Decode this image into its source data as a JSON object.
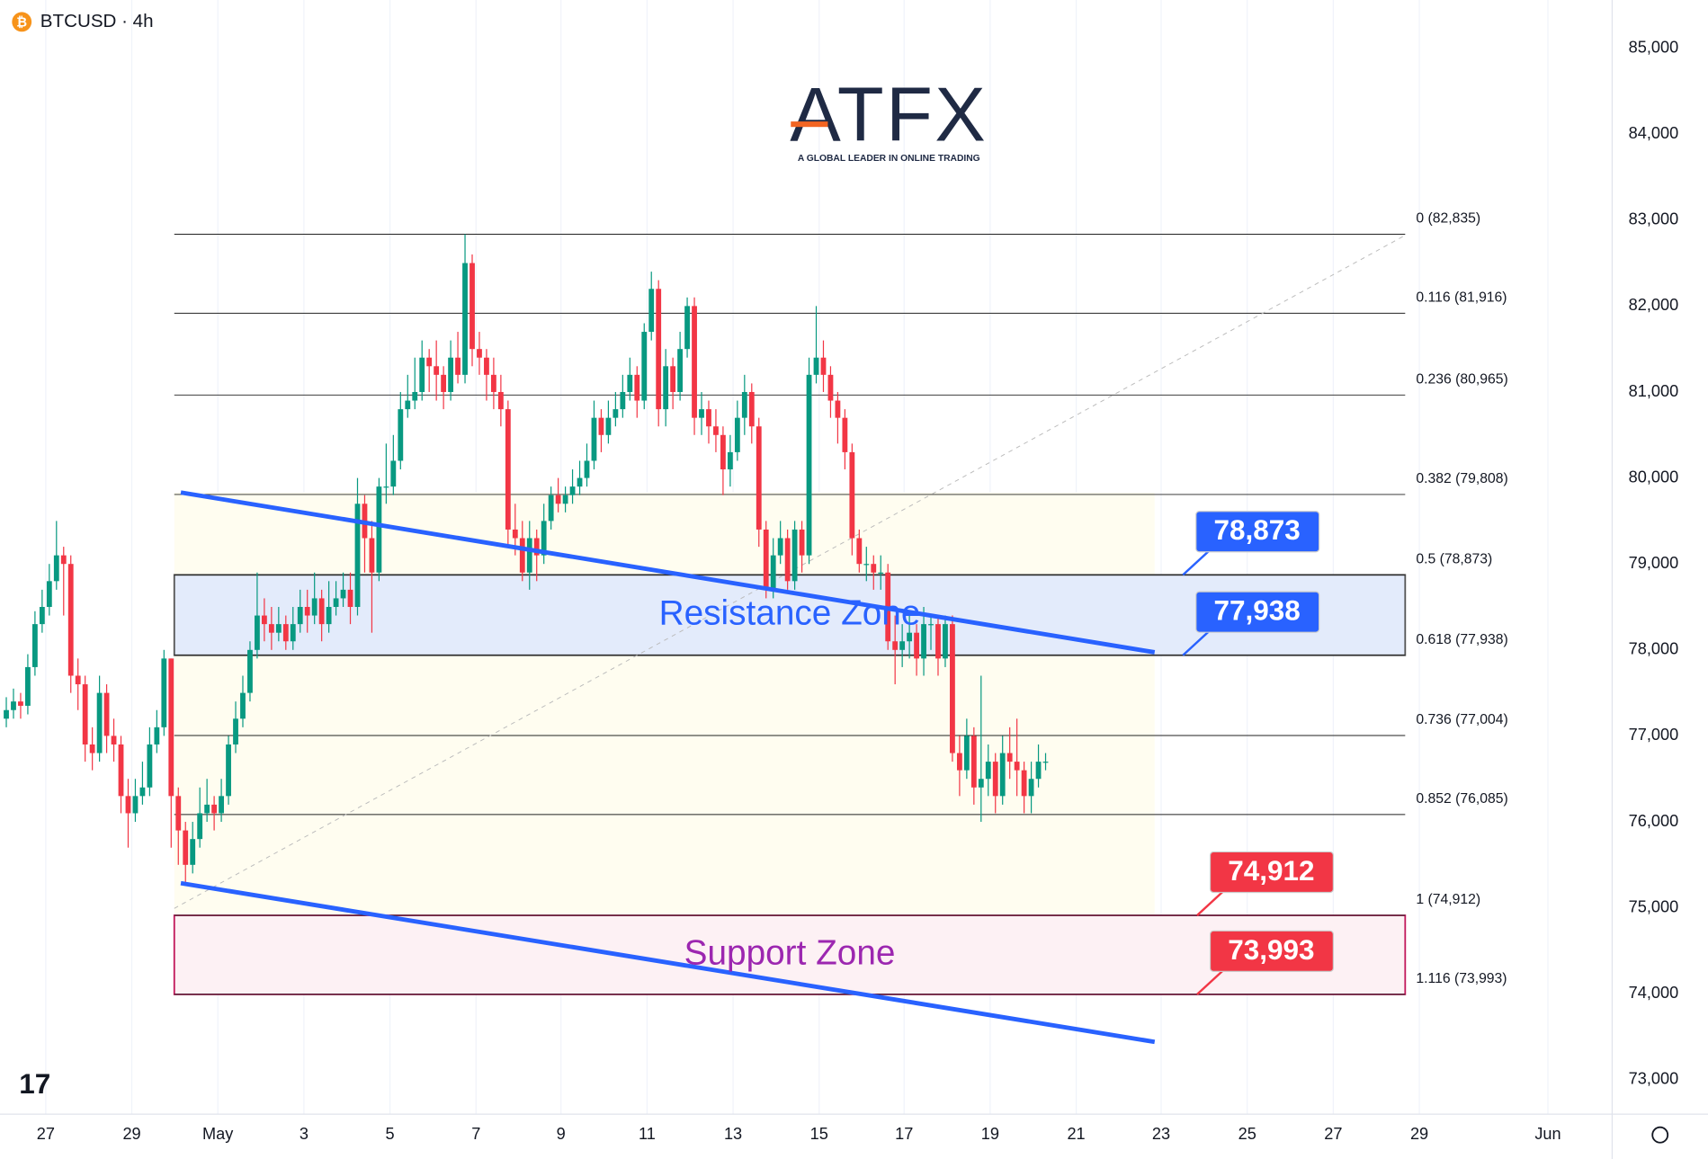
{
  "header": {
    "symbol": "BTCUSD · 4h"
  },
  "logo": {
    "brand": "ATFX",
    "tagline": "A GLOBAL LEADER IN ONLINE TRADING"
  },
  "chart_data": {
    "type": "candlestick",
    "up_color": "#089981",
    "down_color": "#f23645",
    "ylim": [
      72600,
      85560
    ],
    "yticks": [
      {
        "value": 73000,
        "label": "73,000"
      },
      {
        "value": 74000,
        "label": "74,000"
      },
      {
        "value": 75000,
        "label": "75,000"
      },
      {
        "value": 76000,
        "label": "76,000"
      },
      {
        "value": 77000,
        "label": "77,000"
      },
      {
        "value": 78000,
        "label": "78,000"
      },
      {
        "value": 79000,
        "label": "79,000"
      },
      {
        "value": 80000,
        "label": "80,000"
      },
      {
        "value": 81000,
        "label": "81,000"
      },
      {
        "value": 82000,
        "label": "82,000"
      },
      {
        "value": 83000,
        "label": "83,000"
      },
      {
        "value": 84000,
        "label": "84,000"
      },
      {
        "value": 85000,
        "label": "85,000"
      }
    ],
    "xticks": [
      "27",
      "29",
      "May",
      "3",
      "5",
      "7",
      "9",
      "11",
      "13",
      "15",
      "17",
      "19",
      "21",
      "23",
      "25",
      "27",
      "29",
      "Jun"
    ],
    "grid": true,
    "candles": [
      [
        77200,
        77450,
        77100,
        77300
      ],
      [
        77300,
        77550,
        77200,
        77400
      ],
      [
        77400,
        77500,
        77200,
        77350
      ],
      [
        77350,
        77950,
        77250,
        77800
      ],
      [
        77800,
        78450,
        77700,
        78300
      ],
      [
        78300,
        78700,
        78200,
        78500
      ],
      [
        78500,
        79000,
        78400,
        78800
      ],
      [
        78800,
        79500,
        78700,
        79100
      ],
      [
        79100,
        79200,
        78400,
        79000
      ],
      [
        79000,
        79100,
        77500,
        77700
      ],
      [
        77700,
        77900,
        77300,
        77600
      ],
      [
        77600,
        77700,
        76700,
        76900
      ],
      [
        76900,
        77100,
        76600,
        76800
      ],
      [
        76800,
        77700,
        76700,
        77500
      ],
      [
        77500,
        77600,
        76800,
        77000
      ],
      [
        77000,
        77200,
        76700,
        76900
      ],
      [
        76900,
        77000,
        76100,
        76300
      ],
      [
        76300,
        76500,
        75700,
        76100
      ],
      [
        76100,
        76500,
        76000,
        76300
      ],
      [
        76300,
        76700,
        76200,
        76400
      ],
      [
        76400,
        77100,
        76300,
        76900
      ],
      [
        76900,
        77300,
        76800,
        77100
      ],
      [
        77100,
        78000,
        77000,
        77900
      ],
      [
        77900,
        77900,
        75700,
        76300
      ],
      [
        76300,
        76400,
        75500,
        75900
      ],
      [
        75900,
        76000,
        75300,
        75500
      ],
      [
        75500,
        76000,
        75400,
        75800
      ],
      [
        75800,
        76400,
        75700,
        76100
      ],
      [
        76100,
        76500,
        76000,
        76200
      ],
      [
        76200,
        76300,
        75900,
        76100
      ],
      [
        76100,
        76500,
        76000,
        76300
      ],
      [
        76300,
        77000,
        76200,
        76900
      ],
      [
        76900,
        77400,
        76800,
        77200
      ],
      [
        77200,
        77700,
        77100,
        77500
      ],
      [
        77500,
        78100,
        77400,
        78000
      ],
      [
        78000,
        78900,
        77900,
        78400
      ],
      [
        78400,
        78600,
        78100,
        78300
      ],
      [
        78300,
        78500,
        78000,
        78200
      ],
      [
        78200,
        78500,
        78100,
        78300
      ],
      [
        78300,
        78400,
        78000,
        78100
      ],
      [
        78100,
        78500,
        78000,
        78300
      ],
      [
        78300,
        78700,
        78200,
        78500
      ],
      [
        78500,
        78700,
        78200,
        78400
      ],
      [
        78400,
        78900,
        78300,
        78600
      ],
      [
        78600,
        78700,
        78100,
        78300
      ],
      [
        78300,
        78800,
        78200,
        78500
      ],
      [
        78500,
        78800,
        78400,
        78600
      ],
      [
        78600,
        78900,
        78500,
        78700
      ],
      [
        78700,
        78900,
        78300,
        78500
      ],
      [
        78500,
        80000,
        78400,
        79700
      ],
      [
        79700,
        79800,
        78900,
        79300
      ],
      [
        79300,
        79500,
        78200,
        78900
      ],
      [
        78900,
        80000,
        78800,
        79900
      ],
      [
        79900,
        80400,
        79700,
        79900
      ],
      [
        79900,
        80500,
        79800,
        80200
      ],
      [
        80200,
        81000,
        80100,
        80800
      ],
      [
        80800,
        81200,
        80700,
        80900
      ],
      [
        80900,
        81400,
        80800,
        81000
      ],
      [
        81000,
        81600,
        80900,
        81400
      ],
      [
        81400,
        81500,
        81000,
        81300
      ],
      [
        81300,
        81600,
        80900,
        81200
      ],
      [
        81200,
        81300,
        80800,
        81000
      ],
      [
        81000,
        81600,
        80900,
        81400
      ],
      [
        81400,
        81700,
        81100,
        81200
      ],
      [
        81200,
        82835,
        81100,
        82500
      ],
      [
        82500,
        82600,
        81300,
        81500
      ],
      [
        81500,
        81700,
        81200,
        81400
      ],
      [
        81400,
        81500,
        80900,
        81200
      ],
      [
        81200,
        81400,
        80800,
        81000
      ],
      [
        81000,
        81200,
        80600,
        80800
      ],
      [
        80800,
        80900,
        79200,
        79400
      ],
      [
        79400,
        79700,
        79100,
        79300
      ],
      [
        79300,
        79500,
        78800,
        78900
      ],
      [
        78900,
        79500,
        78700,
        79300
      ],
      [
        79300,
        79400,
        78800,
        79100
      ],
      [
        79100,
        79700,
        79000,
        79500
      ],
      [
        79500,
        79900,
        79400,
        79800
      ],
      [
        79800,
        80000,
        79600,
        79700
      ],
      [
        79700,
        79900,
        79600,
        79800
      ],
      [
        79800,
        80100,
        79700,
        79900
      ],
      [
        79900,
        80200,
        79800,
        80000
      ],
      [
        80000,
        80400,
        79900,
        80200
      ],
      [
        80200,
        80900,
        80100,
        80700
      ],
      [
        80700,
        80800,
        80300,
        80500
      ],
      [
        80500,
        80900,
        80400,
        80700
      ],
      [
        80700,
        81000,
        80600,
        80800
      ],
      [
        80800,
        81200,
        80700,
        81000
      ],
      [
        81000,
        81400,
        80900,
        81200
      ],
      [
        81200,
        81300,
        80700,
        80900
      ],
      [
        80900,
        81800,
        80800,
        81700
      ],
      [
        81700,
        82400,
        81600,
        82200
      ],
      [
        82200,
        82300,
        80600,
        80800
      ],
      [
        80800,
        81500,
        80600,
        81300
      ],
      [
        81300,
        81400,
        80800,
        81000
      ],
      [
        81000,
        81700,
        80900,
        81500
      ],
      [
        81500,
        82100,
        81400,
        82000
      ],
      [
        82000,
        82100,
        80500,
        80700
      ],
      [
        80700,
        81000,
        80500,
        80800
      ],
      [
        80800,
        80900,
        80400,
        80600
      ],
      [
        80600,
        80800,
        80300,
        80500
      ],
      [
        80500,
        80600,
        79800,
        80100
      ],
      [
        80100,
        80500,
        79900,
        80300
      ],
      [
        80300,
        80900,
        80200,
        80700
      ],
      [
        80700,
        81200,
        80500,
        81000
      ],
      [
        81000,
        81100,
        80400,
        80600
      ],
      [
        80600,
        80700,
        79200,
        79400
      ],
      [
        79400,
        79500,
        78600,
        78700
      ],
      [
        78700,
        79300,
        78600,
        79100
      ],
      [
        79100,
        79500,
        79000,
        79300
      ],
      [
        79300,
        79400,
        78700,
        78800
      ],
      [
        78800,
        79500,
        78700,
        79400
      ],
      [
        79400,
        79500,
        78900,
        79100
      ],
      [
        79100,
        81400,
        79000,
        81200
      ],
      [
        81200,
        82000,
        81100,
        81400
      ],
      [
        81400,
        81600,
        81000,
        81200
      ],
      [
        81200,
        81300,
        80700,
        80900
      ],
      [
        80900,
        81000,
        80400,
        80700
      ],
      [
        80700,
        80800,
        80100,
        80300
      ],
      [
        80300,
        80400,
        79100,
        79300
      ],
      [
        79300,
        79400,
        78900,
        79000
      ],
      [
        79000,
        79200,
        78800,
        79000
      ],
      [
        79000,
        79100,
        78700,
        78900
      ],
      [
        78900,
        79100,
        78700,
        78900
      ],
      [
        78900,
        79000,
        78000,
        78100
      ],
      [
        78100,
        78400,
        77600,
        78000
      ],
      [
        78000,
        78300,
        77800,
        78100
      ],
      [
        78100,
        78400,
        77900,
        78200
      ],
      [
        78200,
        78300,
        77700,
        77900
      ],
      [
        77900,
        78500,
        77700,
        78300
      ],
      [
        78300,
        78400,
        78000,
        78300
      ],
      [
        78300,
        78400,
        77700,
        77900
      ],
      [
        77900,
        78400,
        77800,
        78300
      ],
      [
        78300,
        78400,
        76700,
        76800
      ],
      [
        76800,
        77000,
        76300,
        76600
      ],
      [
        76600,
        77200,
        76500,
        77000
      ],
      [
        77000,
        77100,
        76200,
        76400
      ],
      [
        76400,
        77700,
        76000,
        76500
      ],
      [
        76500,
        76900,
        76300,
        76700
      ],
      [
        76700,
        76800,
        76100,
        76300
      ],
      [
        76300,
        77000,
        76200,
        76800
      ],
      [
        76800,
        77100,
        76500,
        76700
      ],
      [
        76700,
        77200,
        76300,
        76600
      ],
      [
        76600,
        76700,
        76100,
        76300
      ],
      [
        76300,
        76700,
        76100,
        76500
      ],
      [
        76500,
        76900,
        76400,
        76700
      ],
      [
        76700,
        76800,
        76600,
        76700
      ]
    ],
    "fib_levels": [
      {
        "value": 82835,
        "label": "0 (82,835)"
      },
      {
        "value": 81916,
        "label": "0.116 (81,916)"
      },
      {
        "value": 80965,
        "label": "0.236 (80,965)"
      },
      {
        "value": 79808,
        "label": "0.382 (79,808)"
      },
      {
        "value": 78873,
        "label": "0.5 (78,873)"
      },
      {
        "value": 77938,
        "label": "0.618 (77,938)"
      },
      {
        "value": 77004,
        "label": "0.736 (77,004)"
      },
      {
        "value": 76085,
        "label": "0.852 (76,085)"
      },
      {
        "value": 74912,
        "label": "1 (74,912)"
      },
      {
        "value": 73993,
        "label": "1.116 (73,993)"
      }
    ],
    "zones": [
      {
        "name": "Resistance Zone",
        "top": 78873,
        "bottom": 77938,
        "fill": "#e3ebfb",
        "stroke": "#555",
        "text_color": "#2962ff"
      },
      {
        "name": "Support Zone",
        "top": 74912,
        "bottom": 73993,
        "fill": "#fdf1f4",
        "stroke": "#c2185b",
        "text_color": "#9c27b0"
      }
    ],
    "callouts": [
      {
        "value": 78873,
        "label": "78,873",
        "color": "#2962ff"
      },
      {
        "value": 77938,
        "label": "77,938",
        "color": "#2962ff"
      },
      {
        "value": 74912,
        "label": "74,912",
        "color": "#f23645"
      },
      {
        "value": 73993,
        "label": "73,993",
        "color": "#f23645"
      }
    ]
  }
}
